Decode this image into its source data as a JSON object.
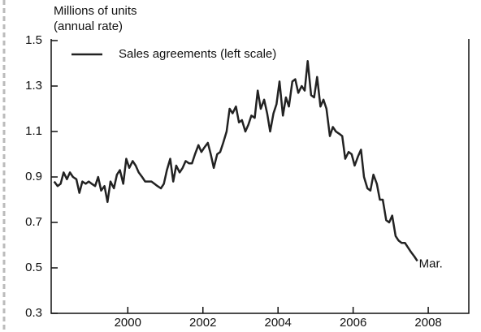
{
  "chart_data": {
    "type": "line",
    "ylabel": [
      "Millions of units",
      "(annual rate)"
    ],
    "annotation": "Mar.",
    "x": [
      1998.54,
      1998.63,
      1998.71,
      1998.79,
      1998.88,
      1998.96,
      1999.04,
      1999.13,
      1999.21,
      1999.29,
      1999.38,
      1999.46,
      1999.54,
      1999.63,
      1999.71,
      1999.79,
      1999.88,
      1999.96,
      2000.04,
      2000.13,
      2000.21,
      2000.29,
      2000.38,
      2000.46,
      2000.54,
      2000.63,
      2000.71,
      2000.79,
      2000.88,
      2000.96,
      2001.04,
      2001.13,
      2001.21,
      2001.29,
      2001.38,
      2001.46,
      2001.54,
      2001.63,
      2001.71,
      2001.79,
      2001.88,
      2001.96,
      2002.04,
      2002.13,
      2002.21,
      2002.29,
      2002.38,
      2002.46,
      2002.54,
      2002.63,
      2002.71,
      2002.79,
      2002.88,
      2002.96,
      2003.04,
      2003.13,
      2003.21,
      2003.29,
      2003.38,
      2003.46,
      2003.54,
      2003.63,
      2003.71,
      2003.79,
      2003.88,
      2003.96,
      2004.04,
      2004.13,
      2004.21,
      2004.29,
      2004.38,
      2004.46,
      2004.54,
      2004.63,
      2004.71,
      2004.79,
      2004.88,
      2004.96,
      2005.04,
      2005.13,
      2005.21,
      2005.29,
      2005.38,
      2005.46,
      2005.54,
      2005.63,
      2005.71,
      2005.79,
      2005.88,
      2005.96,
      2006.04,
      2006.13,
      2006.21,
      2006.29,
      2006.38,
      2006.46,
      2006.54,
      2006.63,
      2006.71,
      2006.79,
      2006.88,
      2006.96,
      2007.04,
      2007.13,
      2007.21,
      2007.29,
      2007.38,
      2007.46,
      2007.54,
      2007.63,
      2007.71,
      2007.79,
      2007.88,
      2007.96,
      2008.04,
      2008.13,
      2008.21
    ],
    "series": [
      {
        "name": "Sales agreements (left scale)",
        "color": "#222222",
        "values": [
          0.88,
          0.86,
          0.87,
          0.92,
          0.89,
          0.92,
          0.9,
          0.89,
          0.83,
          0.88,
          0.87,
          0.88,
          0.87,
          0.86,
          0.9,
          0.84,
          0.86,
          0.79,
          0.88,
          0.85,
          0.91,
          0.93,
          0.87,
          0.98,
          0.94,
          0.97,
          0.95,
          0.92,
          0.9,
          0.88,
          0.88,
          0.88,
          0.87,
          0.86,
          0.85,
          0.87,
          0.93,
          0.98,
          0.88,
          0.95,
          0.92,
          0.94,
          0.97,
          0.96,
          0.96,
          1.0,
          1.04,
          1.01,
          1.03,
          1.05,
          1.0,
          0.94,
          1.0,
          1.01,
          1.05,
          1.1,
          1.2,
          1.18,
          1.21,
          1.14,
          1.15,
          1.1,
          1.13,
          1.17,
          1.16,
          1.28,
          1.2,
          1.24,
          1.18,
          1.1,
          1.18,
          1.22,
          1.32,
          1.17,
          1.25,
          1.21,
          1.32,
          1.33,
          1.27,
          1.3,
          1.28,
          1.41,
          1.26,
          1.25,
          1.34,
          1.21,
          1.24,
          1.2,
          1.08,
          1.12,
          1.1,
          1.09,
          1.08,
          0.98,
          1.01,
          1.0,
          0.95,
          0.99,
          1.02,
          0.9,
          0.85,
          0.84,
          0.91,
          0.87,
          0.8,
          0.8,
          0.71,
          0.7,
          0.73,
          0.64,
          0.62,
          0.61,
          0.61,
          0.59,
          0.57,
          0.55,
          0.53
        ]
      }
    ],
    "xlim": [
      1998.46,
      2009.58
    ],
    "xticks": [
      {
        "value": 2000.5,
        "label": "2000"
      },
      {
        "value": 2002.5,
        "label": "2002"
      },
      {
        "value": 2004.5,
        "label": "2004"
      },
      {
        "value": 2006.5,
        "label": "2006"
      },
      {
        "value": 2008.5,
        "label": "2008"
      }
    ],
    "ylim": [
      0.3,
      1.5
    ],
    "yticks": [
      0.3,
      0.5,
      0.7,
      0.9,
      1.1,
      1.3,
      1.5
    ],
    "grid": false,
    "legend": "top-left"
  }
}
